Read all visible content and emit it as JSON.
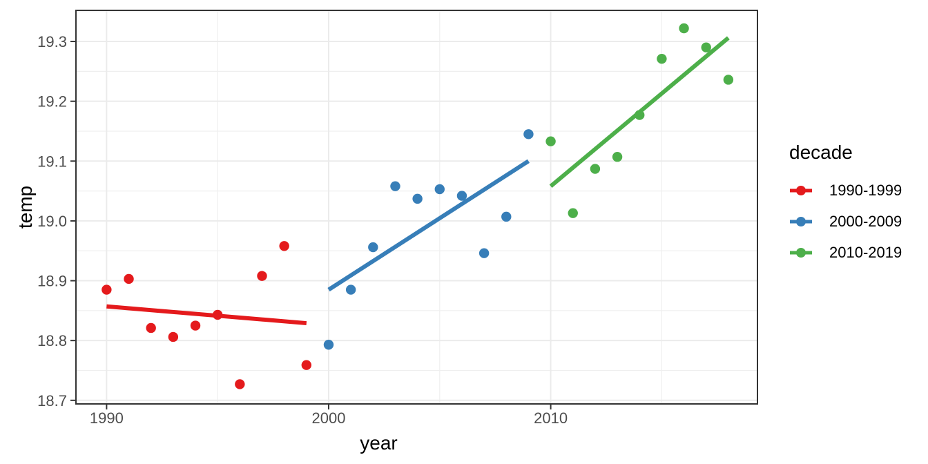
{
  "chart_data": {
    "type": "scatter",
    "title": "",
    "xlabel": "year",
    "ylabel": "temp",
    "xlim": [
      1988.62,
      2019.31
    ],
    "ylim": [
      18.694,
      19.352
    ],
    "x_ticks": [
      {
        "value": 1990,
        "label": "1990"
      },
      {
        "value": 2000,
        "label": "2000"
      },
      {
        "value": 2010,
        "label": "2010"
      }
    ],
    "x_minor_ticks": [
      1995,
      2005,
      2015
    ],
    "y_ticks": [
      {
        "value": 18.7,
        "label": "18.7"
      },
      {
        "value": 18.8,
        "label": "18.8"
      },
      {
        "value": 18.9,
        "label": "18.9"
      },
      {
        "value": 19.0,
        "label": "19.0"
      },
      {
        "value": 19.1,
        "label": "19.1"
      },
      {
        "value": 19.2,
        "label": "19.2"
      },
      {
        "value": 19.3,
        "label": "19.3"
      }
    ],
    "y_minor_ticks": [
      18.75,
      18.85,
      18.95,
      19.05,
      19.15,
      19.25,
      19.35
    ],
    "grid": true,
    "legend": {
      "title": "decade",
      "position": "right",
      "items": [
        {
          "label": "1990-1999",
          "color": "#E41A1C"
        },
        {
          "label": "2000-2009",
          "color": "#377EB8"
        },
        {
          "label": "2010-2019",
          "color": "#4DAF4A"
        }
      ]
    },
    "series": [
      {
        "name": "1990-1999",
        "color": "#E41A1C",
        "x": [
          1990,
          1991,
          1992,
          1993,
          1994,
          1995,
          1996,
          1997,
          1998,
          1999
        ],
        "y": [
          18.885,
          18.903,
          18.821,
          18.806,
          18.825,
          18.843,
          18.727,
          18.908,
          18.958,
          18.759
        ],
        "trend_line": {
          "x1": 1990,
          "y1": 18.857,
          "x2": 1999,
          "y2": 18.829
        }
      },
      {
        "name": "2000-2009",
        "color": "#377EB8",
        "x": [
          2000,
          2001,
          2002,
          2003,
          2004,
          2005,
          2006,
          2007,
          2008,
          2009
        ],
        "y": [
          18.793,
          18.885,
          18.956,
          19.058,
          19.037,
          19.053,
          19.042,
          18.946,
          19.007,
          19.145
        ],
        "trend_line": {
          "x1": 2000,
          "y1": 18.885,
          "x2": 2009,
          "y2": 19.1
        }
      },
      {
        "name": "2010-2019",
        "color": "#4DAF4A",
        "x": [
          2010,
          2011,
          2012,
          2013,
          2014,
          2015,
          2016,
          2017,
          2018
        ],
        "y": [
          19.133,
          19.013,
          19.087,
          19.107,
          19.177,
          19.271,
          19.322,
          19.29,
          19.236
        ],
        "trend_line": {
          "x1": 2010,
          "y1": 19.058,
          "x2": 2018,
          "y2": 19.306
        }
      }
    ],
    "style": {
      "background": "#FFFFFF",
      "grid_major_color": "#EBEBEB",
      "grid_minor_color": "#EFEFEF",
      "panel_border_color": "#333333",
      "tick_color": "#333333",
      "tick_label_color": "#4D4D4D",
      "title_color": "#000000"
    }
  }
}
